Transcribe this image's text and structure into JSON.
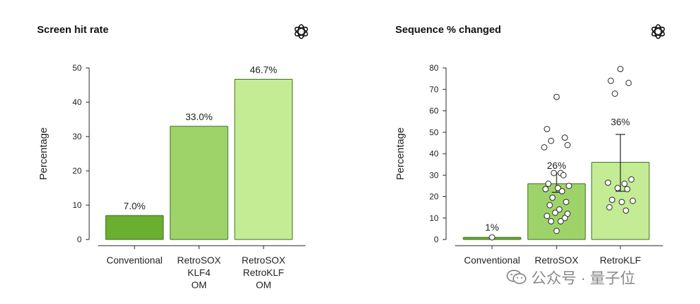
{
  "watermark": {
    "text": "公众号 · 量子位",
    "icon": "wechat-icon"
  },
  "logo_icon": "openai-logo-icon",
  "colors": {
    "dark": "#6aaf2f",
    "mid": "#9ed36a",
    "light": "#c3ec95",
    "stroke": "#3d6b1c"
  },
  "chart_data": [
    {
      "type": "bar",
      "title": "Screen hit rate",
      "ylabel": "Percentage",
      "xlabel": "",
      "ylim": [
        0,
        50
      ],
      "yticks": [
        0,
        10,
        20,
        30,
        40,
        50
      ],
      "categories": [
        [
          "Conventional"
        ],
        [
          "RetroSOX",
          "KLF4",
          "OM"
        ],
        [
          "RetroSOX",
          "RetroKLF",
          "OM"
        ]
      ],
      "values": [
        7.0,
        33.0,
        46.7
      ],
      "labels": [
        "7.0%",
        "33.0%",
        "46.7%"
      ],
      "colors": [
        "#6aaf2f",
        "#9ed36a",
        "#c3ec95"
      ],
      "grid": false,
      "legend": "none"
    },
    {
      "type": "bar",
      "title": "Sequence % changed",
      "ylabel": "Percentage",
      "xlabel": "",
      "ylim": [
        0,
        80
      ],
      "yticks": [
        0,
        10,
        20,
        30,
        40,
        50,
        60,
        70,
        80
      ],
      "categories": [
        [
          "Conventional"
        ],
        [
          "RetroSOX"
        ],
        [
          "RetroKLF"
        ]
      ],
      "values": [
        1,
        26,
        36
      ],
      "labels": [
        "1%",
        "26%",
        "36%"
      ],
      "error_bars": [
        null,
        [
          22,
          31
        ],
        [
          22.5,
          49
        ]
      ],
      "points": [
        [
          1
        ],
        [
          66.5,
          51.5,
          47.5,
          46,
          44,
          43,
          31,
          31,
          30,
          26,
          25,
          24,
          23.5,
          22.5,
          19.5,
          17.5,
          16,
          14,
          12.5,
          12,
          11,
          10,
          8.5,
          8.5,
          4
        ],
        [
          79.5,
          74,
          73,
          68,
          28,
          26.5,
          26,
          24,
          23.5,
          18.5,
          18,
          17.5,
          15,
          13.5
        ]
      ],
      "colors": [
        "#6aaf2f",
        "#9ed36a",
        "#c3ec95"
      ],
      "grid": false,
      "legend": "none"
    }
  ]
}
